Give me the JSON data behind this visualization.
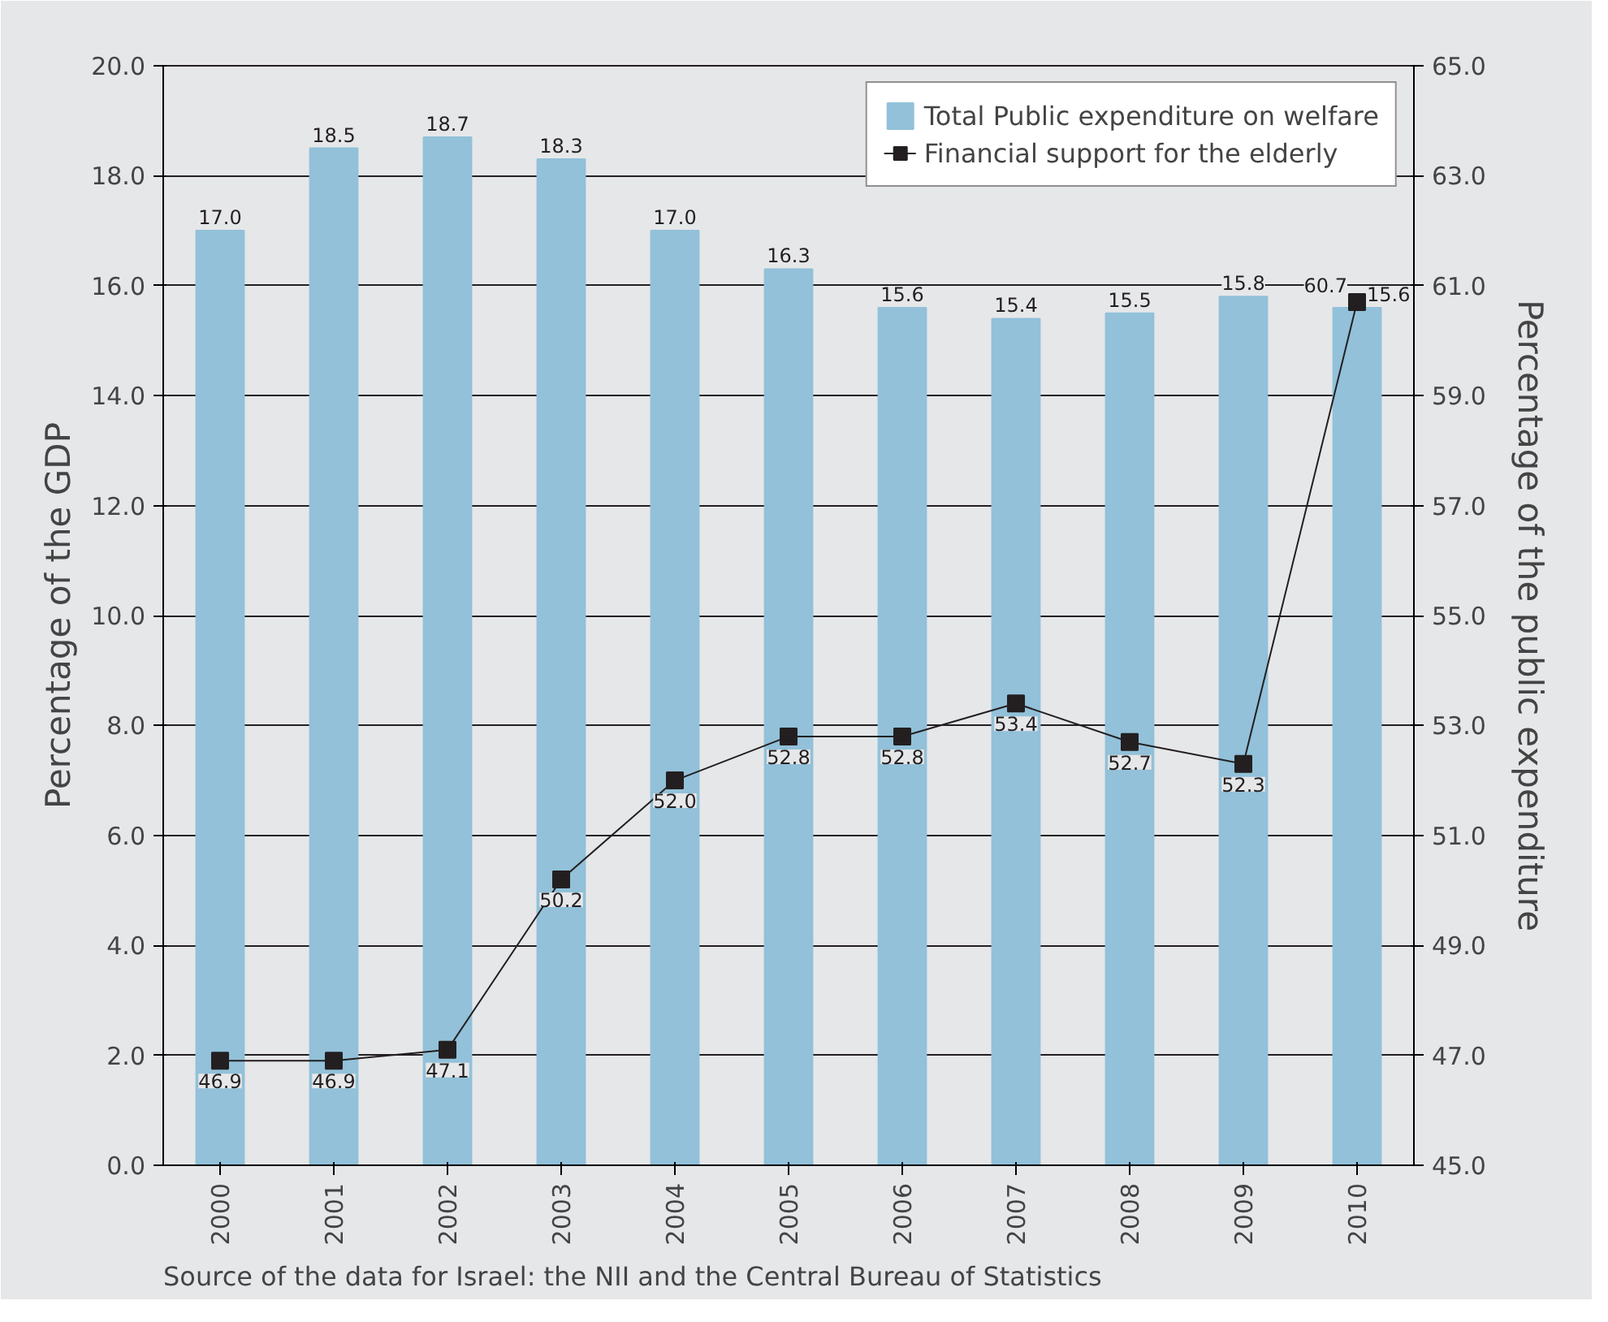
{
  "chart_data": {
    "type": "bar",
    "categories": [
      "2000",
      "2001",
      "2002",
      "2003",
      "2004",
      "2005",
      "2006",
      "2007",
      "2008",
      "2009",
      "2010"
    ],
    "series": [
      {
        "name": "Total Public expenditure on welfare",
        "color": "#92c1d9",
        "values": [
          17.0,
          18.5,
          18.7,
          18.3,
          17.0,
          16.3,
          15.6,
          15.4,
          15.5,
          15.8,
          15.6
        ],
        "value_labels": [
          "17.0",
          "18.5",
          "18.7",
          "18.3",
          "17.0",
          "16.3",
          "15.6",
          "15.4",
          "15.5",
          "15.8",
          "15.6"
        ]
      },
      {
        "name": "Financial support for the elderly",
        "type": "line",
        "axis": "y2",
        "color": "#231f20",
        "marker": "square",
        "values": [
          46.9,
          46.9,
          47.1,
          50.2,
          52.0,
          52.8,
          52.8,
          53.4,
          52.7,
          52.3,
          60.7
        ],
        "value_labels": [
          "46.9",
          "46.9",
          "47.1",
          "50.2",
          "52.0",
          "52.8",
          "52.8",
          "53.4",
          "52.7",
          "52.3",
          "60.7"
        ]
      }
    ],
    "ylabel": "Percentage of the GDP",
    "y2label": "Percentage of the public expenditure",
    "ylim": [
      0,
      20
    ],
    "yticks": [
      {
        "value": 0,
        "label": "0.0"
      },
      {
        "value": 2,
        "label": "2.0"
      },
      {
        "value": 4,
        "label": "4.0"
      },
      {
        "value": 6,
        "label": "6.0"
      },
      {
        "value": 8,
        "label": "8.0"
      },
      {
        "value": 10,
        "label": "10.0"
      },
      {
        "value": 12,
        "label": "12.0"
      },
      {
        "value": 14,
        "label": "14.0"
      },
      {
        "value": 16,
        "label": "16.0"
      },
      {
        "value": 18,
        "label": "18.0"
      },
      {
        "value": 20,
        "label": "20.0"
      }
    ],
    "y2lim": [
      45,
      65
    ],
    "y2ticks": [
      {
        "value": 45,
        "label": "45.0"
      },
      {
        "value": 47,
        "label": "47.0"
      },
      {
        "value": 49,
        "label": "49.0"
      },
      {
        "value": 51,
        "label": "51.0"
      },
      {
        "value": 53,
        "label": "53.0"
      },
      {
        "value": 55,
        "label": "55.0"
      },
      {
        "value": 57,
        "label": "57.0"
      },
      {
        "value": 59,
        "label": "59.0"
      },
      {
        "value": 61,
        "label": "61.0"
      },
      {
        "value": 63,
        "label": "63.0"
      },
      {
        "value": 65,
        "label": "65.0"
      }
    ],
    "grid": "y",
    "legend": "top right",
    "annotations": [
      "Source of the data for Israel: the NII and the Central Bureau of Statistics"
    ]
  }
}
